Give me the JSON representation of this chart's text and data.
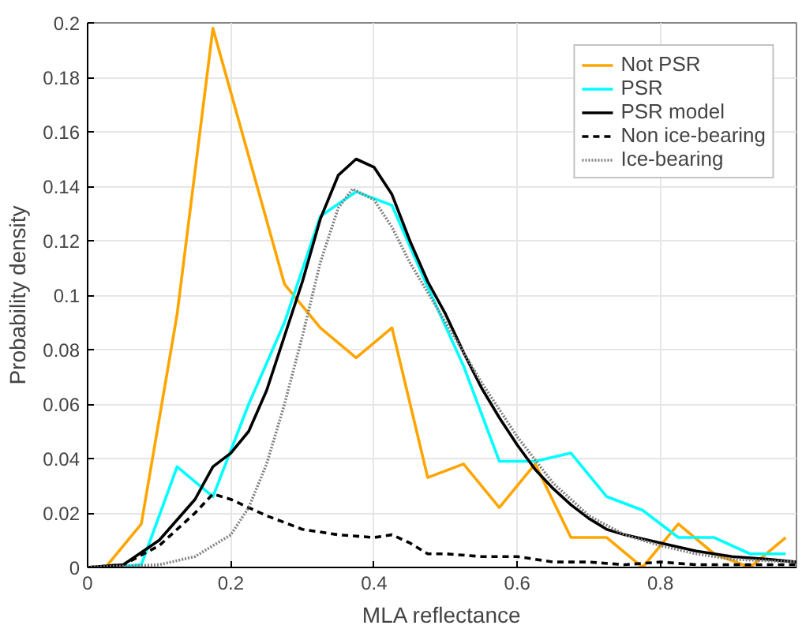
{
  "chart_data": {
    "type": "line",
    "xlabel": "MLA reflectance",
    "ylabel": "Probability density",
    "xlim": [
      0,
      0.99
    ],
    "ylim": [
      0,
      0.2
    ],
    "xticks": [
      0,
      0.2,
      0.4,
      0.6,
      0.8
    ],
    "yticks": [
      0,
      0.02,
      0.04,
      0.06,
      0.08,
      0.1,
      0.12,
      0.14,
      0.16,
      0.18,
      0.2
    ],
    "grid": true,
    "legend": "top right",
    "series": [
      {
        "name": "Not PSR",
        "color": "#ffa500",
        "line_style": "solid",
        "x": [
          0.025,
          0.075,
          0.125,
          0.175,
          0.275,
          0.325,
          0.375,
          0.425,
          0.475,
          0.525,
          0.575,
          0.625,
          0.675,
          0.725,
          0.775,
          0.825,
          0.875,
          0.925,
          0.975
        ],
        "values": [
          0.0,
          0.016,
          0.093,
          0.198,
          0.104,
          0.088,
          0.077,
          0.088,
          0.033,
          0.038,
          0.022,
          0.038,
          0.011,
          0.011,
          0.0,
          0.016,
          0.005,
          0.0,
          0.011
        ]
      },
      {
        "name": "PSR",
        "color": "#00ffff",
        "line_style": "solid",
        "x": [
          0.025,
          0.075,
          0.125,
          0.175,
          0.225,
          0.275,
          0.325,
          0.375,
          0.425,
          0.475,
          0.525,
          0.575,
          0.625,
          0.675,
          0.725,
          0.775,
          0.825,
          0.875,
          0.925,
          0.975
        ],
        "values": [
          0.0,
          0.001,
          0.037,
          0.026,
          0.06,
          0.09,
          0.129,
          0.138,
          0.133,
          0.103,
          0.074,
          0.039,
          0.039,
          0.042,
          0.026,
          0.021,
          0.011,
          0.011,
          0.005,
          0.005
        ]
      },
      {
        "name": "PSR model",
        "color": "#000000",
        "line_style": "solid",
        "x": [
          0,
          0.05,
          0.1,
          0.15,
          0.175,
          0.2,
          0.225,
          0.25,
          0.275,
          0.3,
          0.325,
          0.35,
          0.375,
          0.4,
          0.425,
          0.45,
          0.475,
          0.5,
          0.525,
          0.55,
          0.575,
          0.6,
          0.625,
          0.65,
          0.675,
          0.7,
          0.725,
          0.75,
          0.8,
          0.85,
          0.9,
          0.95,
          0.99
        ],
        "values": [
          0,
          0.001,
          0.01,
          0.025,
          0.037,
          0.042,
          0.05,
          0.065,
          0.085,
          0.105,
          0.128,
          0.144,
          0.15,
          0.147,
          0.137,
          0.12,
          0.105,
          0.093,
          0.079,
          0.066,
          0.055,
          0.045,
          0.036,
          0.029,
          0.023,
          0.018,
          0.014,
          0.012,
          0.009,
          0.006,
          0.004,
          0.003,
          0.002
        ]
      },
      {
        "name": "Non ice-bearing",
        "color": "#000000",
        "line_style": "dashed",
        "x": [
          0,
          0.05,
          0.1,
          0.15,
          0.175,
          0.2,
          0.25,
          0.3,
          0.35,
          0.4,
          0.425,
          0.45,
          0.475,
          0.5,
          0.55,
          0.6,
          0.65,
          0.7,
          0.75,
          0.8,
          0.85,
          0.9,
          0.99
        ],
        "values": [
          0,
          0.001,
          0.008,
          0.02,
          0.027,
          0.025,
          0.019,
          0.014,
          0.012,
          0.011,
          0.012,
          0.009,
          0.005,
          0.005,
          0.004,
          0.004,
          0.002,
          0.002,
          0.001,
          0.002,
          0.001,
          0.001,
          0.001
        ]
      },
      {
        "name": "Ice-bearing",
        "color": "#808080",
        "line_style": "dotted",
        "x": [
          0,
          0.1,
          0.15,
          0.2,
          0.225,
          0.25,
          0.275,
          0.3,
          0.325,
          0.35,
          0.37,
          0.4,
          0.425,
          0.45,
          0.5,
          0.55,
          0.6,
          0.65,
          0.7,
          0.75,
          0.8,
          0.85,
          0.9,
          0.99
        ],
        "values": [
          0,
          0.001,
          0.004,
          0.012,
          0.022,
          0.038,
          0.06,
          0.085,
          0.112,
          0.132,
          0.139,
          0.135,
          0.125,
          0.112,
          0.09,
          0.068,
          0.048,
          0.031,
          0.019,
          0.012,
          0.008,
          0.005,
          0.003,
          0.002
        ]
      }
    ]
  }
}
